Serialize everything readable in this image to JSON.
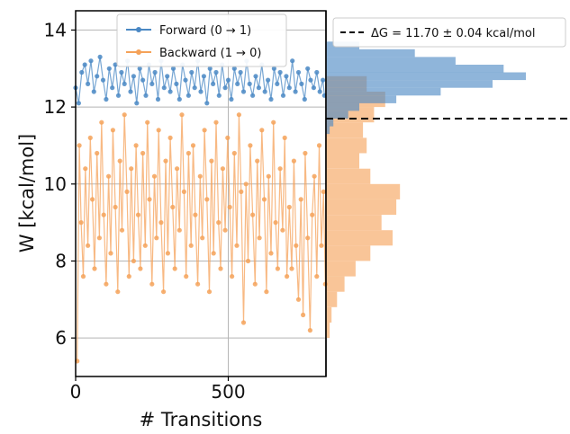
{
  "chart_data": [
    {
      "type": "scatter",
      "panel": "main",
      "xlabel": "# Transitions",
      "ylabel": "W [kcal/mol]",
      "xlim": [
        0,
        820
      ],
      "ylim": [
        5,
        14.5
      ],
      "xticks": [
        0,
        500
      ],
      "xtick_labels": [
        "0",
        "500"
      ],
      "yticks": [
        6,
        8,
        10,
        12,
        14
      ],
      "ytick_labels": [
        "6",
        "8",
        "10",
        "12",
        "14"
      ],
      "grid": true,
      "legend_position": "top-center",
      "series": [
        {
          "name": "Forward (0 → 1)",
          "color": "#4a88c4",
          "points": [
            [
              0,
              12.5
            ],
            [
              10,
              12.1
            ],
            [
              20,
              12.9
            ],
            [
              30,
              13.1
            ],
            [
              40,
              12.6
            ],
            [
              50,
              13.2
            ],
            [
              60,
              12.4
            ],
            [
              70,
              12.8
            ],
            [
              80,
              13.3
            ],
            [
              90,
              12.7
            ],
            [
              100,
              12.2
            ],
            [
              110,
              13.0
            ],
            [
              120,
              12.5
            ],
            [
              130,
              13.1
            ],
            [
              140,
              12.3
            ],
            [
              150,
              12.9
            ],
            [
              160,
              12.6
            ],
            [
              170,
              13.2
            ],
            [
              180,
              12.4
            ],
            [
              190,
              12.8
            ],
            [
              200,
              12.1
            ],
            [
              210,
              13.0
            ],
            [
              220,
              12.7
            ],
            [
              230,
              12.3
            ],
            [
              240,
              13.1
            ],
            [
              250,
              12.6
            ],
            [
              260,
              12.9
            ],
            [
              270,
              12.2
            ],
            [
              280,
              13.2
            ],
            [
              290,
              12.5
            ],
            [
              300,
              12.8
            ],
            [
              310,
              12.4
            ],
            [
              320,
              13.0
            ],
            [
              330,
              12.6
            ],
            [
              340,
              12.2
            ],
            [
              350,
              13.1
            ],
            [
              360,
              12.7
            ],
            [
              370,
              12.3
            ],
            [
              380,
              12.9
            ],
            [
              390,
              12.5
            ],
            [
              400,
              13.2
            ],
            [
              410,
              12.4
            ],
            [
              420,
              12.8
            ],
            [
              430,
              12.1
            ],
            [
              440,
              13.0
            ],
            [
              450,
              12.6
            ],
            [
              460,
              12.9
            ],
            [
              470,
              12.3
            ],
            [
              480,
              13.1
            ],
            [
              490,
              12.5
            ],
            [
              500,
              12.7
            ],
            [
              510,
              12.2
            ],
            [
              520,
              13.0
            ],
            [
              530,
              12.6
            ],
            [
              540,
              12.9
            ],
            [
              550,
              12.4
            ],
            [
              560,
              13.2
            ],
            [
              570,
              12.6
            ],
            [
              580,
              12.3
            ],
            [
              590,
              12.8
            ],
            [
              600,
              12.5
            ],
            [
              610,
              13.1
            ],
            [
              620,
              12.4
            ],
            [
              630,
              12.7
            ],
            [
              640,
              12.2
            ],
            [
              650,
              13.0
            ],
            [
              660,
              12.6
            ],
            [
              670,
              12.9
            ],
            [
              680,
              12.3
            ],
            [
              690,
              12.8
            ],
            [
              700,
              12.5
            ],
            [
              710,
              13.2
            ],
            [
              720,
              12.4
            ],
            [
              730,
              12.9
            ],
            [
              740,
              12.6
            ],
            [
              750,
              12.2
            ],
            [
              760,
              13.0
            ],
            [
              770,
              12.7
            ],
            [
              780,
              12.5
            ],
            [
              790,
              12.9
            ],
            [
              800,
              12.4
            ],
            [
              810,
              12.7
            ],
            [
              815,
              12.3
            ]
          ]
        },
        {
          "name": "Backward (1 → 0)",
          "color": "#f5a259",
          "points": [
            [
              5,
              5.4
            ],
            [
              12,
              11.0
            ],
            [
              18,
              9.0
            ],
            [
              25,
              7.6
            ],
            [
              32,
              10.4
            ],
            [
              40,
              8.4
            ],
            [
              48,
              11.2
            ],
            [
              55,
              9.6
            ],
            [
              62,
              7.8
            ],
            [
              70,
              10.8
            ],
            [
              78,
              8.6
            ],
            [
              85,
              11.6
            ],
            [
              92,
              9.2
            ],
            [
              100,
              7.4
            ],
            [
              108,
              10.2
            ],
            [
              115,
              8.2
            ],
            [
              122,
              11.4
            ],
            [
              130,
              9.4
            ],
            [
              138,
              7.2
            ],
            [
              145,
              10.6
            ],
            [
              152,
              8.8
            ],
            [
              160,
              11.8
            ],
            [
              168,
              9.8
            ],
            [
              175,
              7.6
            ],
            [
              182,
              10.4
            ],
            [
              190,
              8.0
            ],
            [
              198,
              11.0
            ],
            [
              205,
              9.2
            ],
            [
              212,
              7.8
            ],
            [
              220,
              10.8
            ],
            [
              228,
              8.4
            ],
            [
              235,
              11.6
            ],
            [
              242,
              9.6
            ],
            [
              250,
              7.4
            ],
            [
              258,
              10.2
            ],
            [
              265,
              8.6
            ],
            [
              272,
              11.4
            ],
            [
              280,
              9.0
            ],
            [
              288,
              7.2
            ],
            [
              295,
              10.6
            ],
            [
              302,
              8.2
            ],
            [
              310,
              11.2
            ],
            [
              318,
              9.4
            ],
            [
              325,
              7.8
            ],
            [
              332,
              10.4
            ],
            [
              340,
              8.8
            ],
            [
              348,
              11.8
            ],
            [
              355,
              9.8
            ],
            [
              362,
              7.6
            ],
            [
              370,
              10.8
            ],
            [
              378,
              8.4
            ],
            [
              385,
              11.0
            ],
            [
              392,
              9.2
            ],
            [
              400,
              7.4
            ],
            [
              408,
              10.2
            ],
            [
              415,
              8.6
            ],
            [
              422,
              11.4
            ],
            [
              430,
              9.6
            ],
            [
              438,
              7.2
            ],
            [
              445,
              10.6
            ],
            [
              452,
              8.2
            ],
            [
              460,
              11.6
            ],
            [
              468,
              9.0
            ],
            [
              475,
              7.8
            ],
            [
              482,
              10.4
            ],
            [
              490,
              8.8
            ],
            [
              498,
              11.2
            ],
            [
              505,
              9.4
            ],
            [
              512,
              7.6
            ],
            [
              520,
              10.8
            ],
            [
              528,
              8.4
            ],
            [
              535,
              11.8
            ],
            [
              542,
              9.8
            ],
            [
              550,
              6.4
            ],
            [
              558,
              10.0
            ],
            [
              565,
              8.0
            ],
            [
              572,
              11.0
            ],
            [
              580,
              9.2
            ],
            [
              588,
              7.4
            ],
            [
              595,
              10.6
            ],
            [
              602,
              8.6
            ],
            [
              610,
              11.4
            ],
            [
              618,
              9.6
            ],
            [
              625,
              7.2
            ],
            [
              632,
              10.2
            ],
            [
              640,
              8.2
            ],
            [
              648,
              11.6
            ],
            [
              655,
              9.0
            ],
            [
              662,
              7.8
            ],
            [
              670,
              10.4
            ],
            [
              678,
              8.8
            ],
            [
              685,
              11.2
            ],
            [
              692,
              7.6
            ],
            [
              700,
              9.4
            ],
            [
              708,
              7.8
            ],
            [
              715,
              10.6
            ],
            [
              722,
              8.4
            ],
            [
              730,
              7.0
            ],
            [
              738,
              9.6
            ],
            [
              745,
              6.6
            ],
            [
              752,
              10.8
            ],
            [
              760,
              8.6
            ],
            [
              768,
              6.2
            ],
            [
              775,
              9.2
            ],
            [
              782,
              10.2
            ],
            [
              790,
              7.6
            ],
            [
              798,
              11.0
            ],
            [
              805,
              8.4
            ],
            [
              812,
              9.8
            ],
            [
              818,
              7.4
            ]
          ]
        }
      ]
    },
    {
      "type": "histogram",
      "panel": "side",
      "orientation": "horizontal",
      "annotation_label": "ΔG = 11.70 ± 0.04 kcal/mol",
      "annotation_value": 11.7,
      "legend_position": "top",
      "series": [
        {
          "name": "Forward (0 → 1)",
          "color": "#4a88c4",
          "bins": [
            {
              "y0": 11.3,
              "y1": 11.5,
              "count": 2
            },
            {
              "y0": 11.5,
              "y1": 11.7,
              "count": 4
            },
            {
              "y0": 11.7,
              "y1": 11.9,
              "count": 12
            },
            {
              "y0": 11.9,
              "y1": 12.1,
              "count": 18
            },
            {
              "y0": 12.1,
              "y1": 12.3,
              "count": 38
            },
            {
              "y0": 12.3,
              "y1": 12.5,
              "count": 62
            },
            {
              "y0": 12.5,
              "y1": 12.7,
              "count": 90
            },
            {
              "y0": 12.7,
              "y1": 12.9,
              "count": 108
            },
            {
              "y0": 12.9,
              "y1": 13.1,
              "count": 96
            },
            {
              "y0": 13.1,
              "y1": 13.3,
              "count": 70
            },
            {
              "y0": 13.3,
              "y1": 13.5,
              "count": 48
            },
            {
              "y0": 13.5,
              "y1": 13.7,
              "count": 18
            }
          ]
        },
        {
          "name": "Backward (1 → 0)",
          "color": "#f5a259",
          "bins": [
            {
              "y0": 6.0,
              "y1": 6.4,
              "count": 2
            },
            {
              "y0": 6.4,
              "y1": 6.8,
              "count": 3
            },
            {
              "y0": 6.8,
              "y1": 7.2,
              "count": 6
            },
            {
              "y0": 7.2,
              "y1": 7.6,
              "count": 10
            },
            {
              "y0": 7.6,
              "y1": 8.0,
              "count": 16
            },
            {
              "y0": 8.0,
              "y1": 8.4,
              "count": 24
            },
            {
              "y0": 8.4,
              "y1": 8.8,
              "count": 36
            },
            {
              "y0": 8.8,
              "y1": 9.2,
              "count": 30
            },
            {
              "y0": 9.2,
              "y1": 9.6,
              "count": 38
            },
            {
              "y0": 9.6,
              "y1": 10.0,
              "count": 40
            },
            {
              "y0": 10.0,
              "y1": 10.4,
              "count": 24
            },
            {
              "y0": 10.4,
              "y1": 10.8,
              "count": 18
            },
            {
              "y0": 10.8,
              "y1": 11.2,
              "count": 22
            },
            {
              "y0": 11.2,
              "y1": 11.6,
              "count": 20
            },
            {
              "y0": 11.6,
              "y1": 12.0,
              "count": 26
            },
            {
              "y0": 12.0,
              "y1": 12.4,
              "count": 32
            },
            {
              "y0": 12.4,
              "y1": 12.8,
              "count": 22
            }
          ]
        }
      ]
    }
  ]
}
